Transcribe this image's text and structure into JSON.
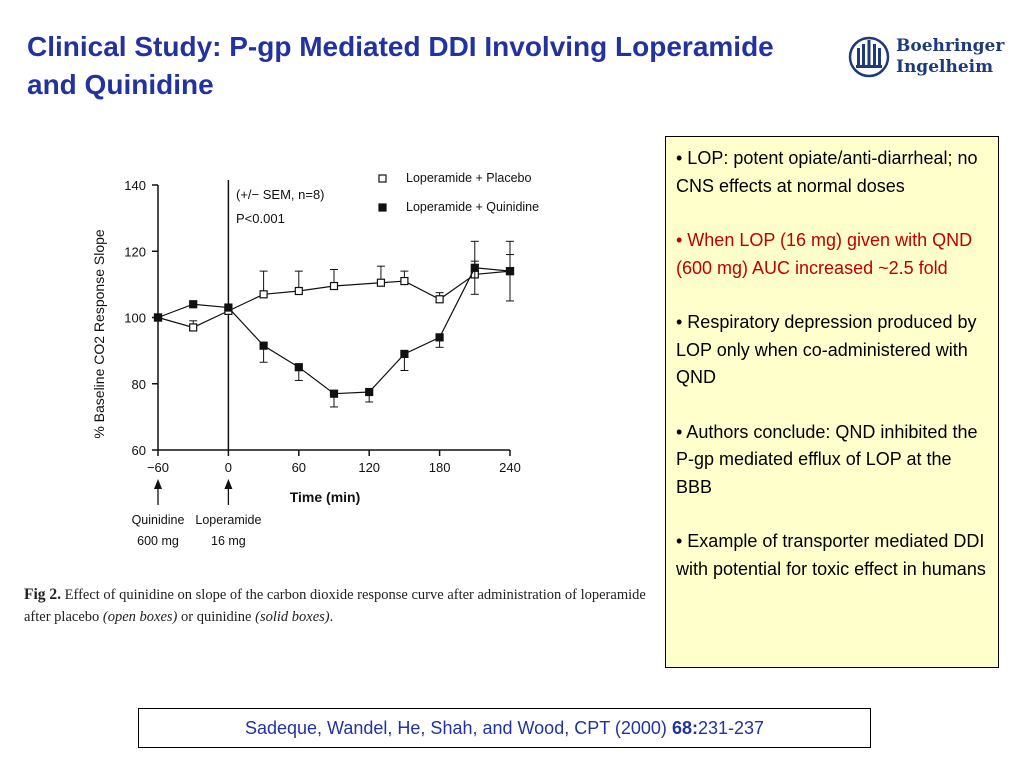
{
  "slide": {
    "title": "Clinical Study: P-gp Mediated DDI Involving Loperamide and Quinidine"
  },
  "logo": {
    "line1": "Boehringer",
    "line2": "Ingelheim",
    "icon": "boehringer-logo-icon",
    "color": "#1d3a7a"
  },
  "chart_data": {
    "type": "line",
    "ylabel": "% Baseline CO2 Response Slope",
    "xlabel": "Time (min)",
    "xlim": [
      -60,
      240
    ],
    "ylim": [
      60,
      140
    ],
    "x_ticks": [
      -60,
      0,
      60,
      120,
      180,
      240
    ],
    "y_ticks": [
      60,
      80,
      100,
      120,
      140
    ],
    "annotation_sem": "(+/− SEM, n=8)",
    "annotation_p": "P<0.001",
    "legend_position": "top-right",
    "series": [
      {
        "name": "Loperamide + Placebo",
        "marker": "open-square",
        "x": [
          -60,
          -30,
          0,
          30,
          60,
          90,
          130,
          150,
          180,
          210,
          240
        ],
        "y": [
          100,
          97,
          102,
          107,
          108,
          109.5,
          110.5,
          111,
          105.5,
          113,
          114
        ],
        "err": [
          0,
          2,
          2,
          7,
          6,
          5,
          5,
          3,
          2,
          4,
          5
        ]
      },
      {
        "name": "Loperamide + Quinidine",
        "marker": "filled-square",
        "x": [
          -60,
          -30,
          0,
          30,
          60,
          90,
          120,
          150,
          180,
          210,
          240
        ],
        "y": [
          100,
          104,
          103,
          91.5,
          85,
          77,
          77.5,
          89,
          94,
          115,
          114
        ],
        "err": [
          0,
          0,
          0,
          5,
          4,
          4,
          3,
          5,
          3,
          8,
          9
        ]
      }
    ],
    "markers_below_axis": [
      {
        "x": -60,
        "line1": "Quinidine",
        "line2": "600 mg"
      },
      {
        "x": 0,
        "line1": "Loperamide",
        "line2": "16 mg"
      }
    ]
  },
  "caption": {
    "fig": "Fig 2.",
    "text_a": "Effect of quinidine on slope of the carbon dioxide response curve after administration of loperamide after placebo",
    "open": "(open boxes)",
    "text_b": "or quinidine",
    "solid": "(solid boxes)",
    "end": "."
  },
  "bullets": [
    {
      "text": "• LOP: potent opiate/anti-diarrheal; no CNS effects at normal doses",
      "color": "#000000"
    },
    {
      "text": "• When LOP (16 mg) given with QND (600 mg) AUC increased ~2.5 fold",
      "color": "#c00000"
    },
    {
      "text": "• Respiratory depression produced by LOP only when co-administered with QND",
      "color": "#000000"
    },
    {
      "text": "• Authors conclude: QND inhibited the P-gp mediated efflux of LOP at the BBB",
      "color": "#000000"
    },
    {
      "text": "• Example of transporter mediated DDI with potential for toxic effect in humans",
      "color": "#000000"
    }
  ],
  "citation": {
    "authors": "Sadeque, Wandel, He, Shah, and Wood, CPT (2000)",
    "volume": "68:",
    "pages": "231-237"
  }
}
